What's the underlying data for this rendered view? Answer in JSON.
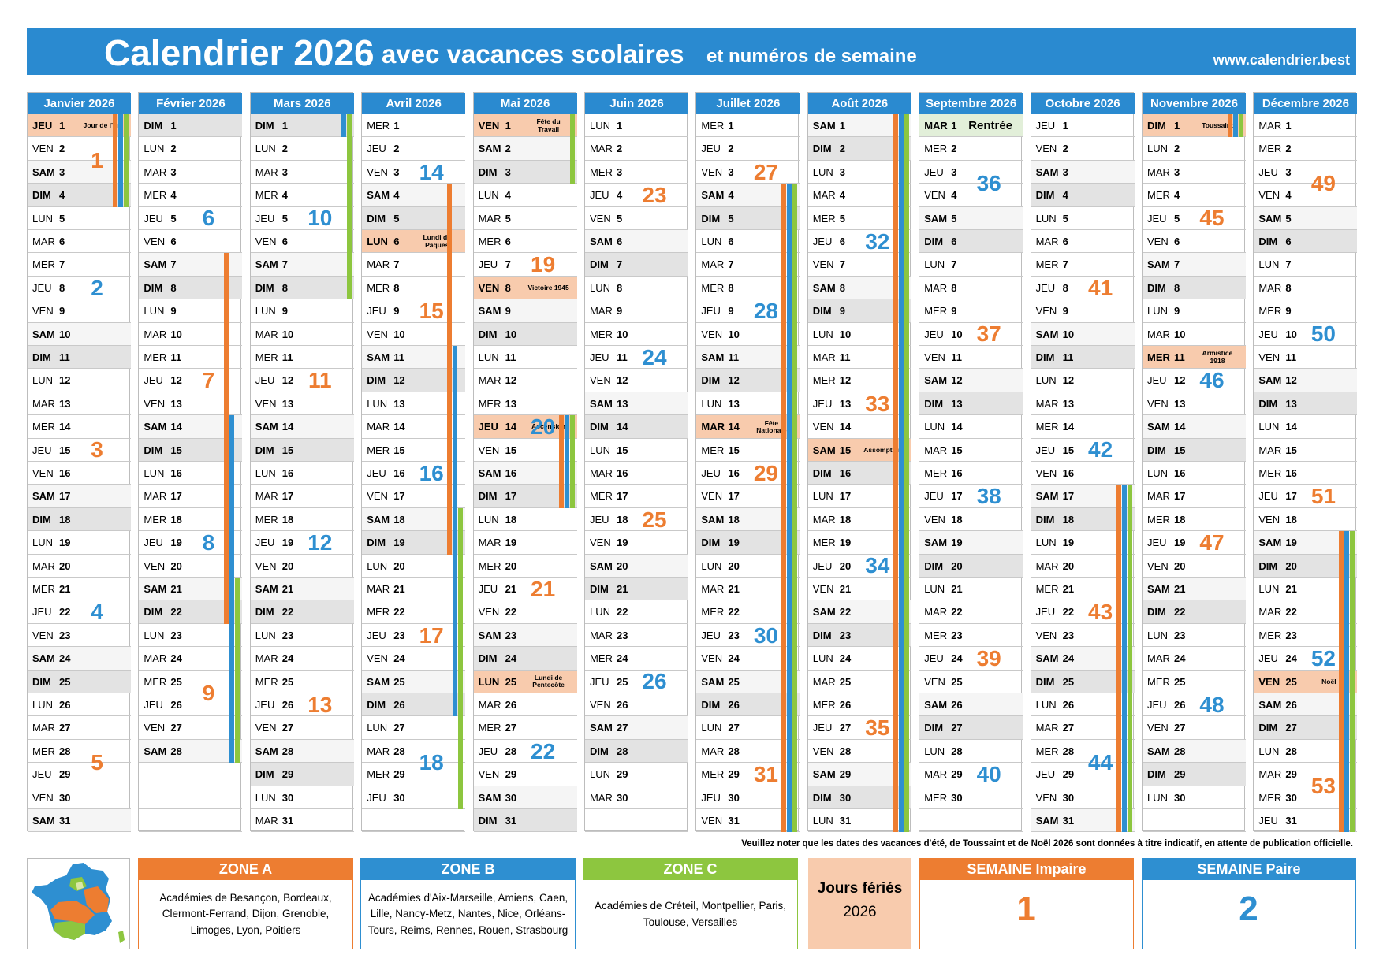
{
  "header": {
    "title": "Calendrier 2026",
    "subtitle": "avec vacances scolaires",
    "subtitle2": "et numéros de semaine",
    "url": "www.calendrier.best"
  },
  "header_color": "#2a8ad0",
  "holiday_color": "#f8cbad",
  "week_colors": {
    "odd": "#ed7d31",
    "even": "#2e8fd1"
  },
  "weekdays": [
    "LUN",
    "MAR",
    "MER",
    "JEU",
    "VEN",
    "SAM",
    "DIM"
  ],
  "months": [
    {
      "name": "Janvier 2026",
      "day_names": [
        "JEU",
        "VEN",
        "SAM",
        "DIM",
        "LUN",
        "MAR",
        "MER",
        "JEU",
        "VEN",
        "SAM",
        "DIM",
        "LUN",
        "MAR",
        "MER",
        "JEU",
        "VEN",
        "SAM",
        "DIM",
        "LUN",
        "MAR",
        "MER",
        "JEU",
        "VEN",
        "SAM",
        "DIM",
        "LUN",
        "MAR",
        "MER",
        "JEU",
        "VEN",
        "SAM"
      ],
      "days": [
        1,
        2,
        3,
        4,
        5,
        6,
        7,
        8,
        9,
        10,
        11,
        12,
        13,
        14,
        15,
        16,
        17,
        18,
        19,
        20,
        21,
        22,
        23,
        24,
        25,
        26,
        27,
        28,
        29,
        30,
        31
      ],
      "weeks": [
        1,
        2,
        3,
        4,
        5
      ],
      "holidays": [
        {
          "day": 1,
          "label": "Jour de l'An"
        }
      ],
      "vacations": [
        {
          "zone": "ZONE A",
          "days": [
            1,
            4
          ]
        },
        {
          "zone": "ZONE B",
          "days": [
            1,
            4
          ]
        },
        {
          "zone": "ZONE C",
          "days": [
            1,
            4
          ]
        }
      ]
    },
    {
      "name": "Février 2026",
      "day_names": [
        "DIM",
        "LUN",
        "MAR",
        "MER",
        "JEU",
        "VEN",
        "SAM",
        "DIM",
        "LUN",
        "MAR",
        "MER",
        "JEU",
        "VEN",
        "SAM",
        "DIM",
        "LUN",
        "MAR",
        "MER",
        "JEU",
        "VEN",
        "SAM",
        "DIM",
        "LUN",
        "MAR",
        "MER",
        "JEU",
        "VEN",
        "SAM"
      ],
      "days": [
        1,
        2,
        3,
        4,
        5,
        6,
        7,
        8,
        9,
        10,
        11,
        12,
        13,
        14,
        15,
        16,
        17,
        18,
        19,
        20,
        21,
        22,
        23,
        24,
        25,
        26,
        27,
        28
      ],
      "weeks": [
        null,
        6,
        7,
        8,
        9
      ],
      "vacations": [
        {
          "zone": "ZONE A",
          "days": [
            7,
            22
          ]
        },
        {
          "zone": "ZONE B",
          "days": [
            14,
            28
          ]
        },
        {
          "zone": "ZONE C",
          "days": [
            21,
            28
          ]
        }
      ]
    },
    {
      "name": "Mars 2026",
      "day_names": [
        "DIM",
        "LUN",
        "MAR",
        "MER",
        "JEU",
        "VEN",
        "SAM",
        "DIM",
        "LUN",
        "MAR",
        "MER",
        "JEU",
        "VEN",
        "SAM",
        "DIM",
        "LUN",
        "MAR",
        "MER",
        "JEU",
        "VEN",
        "SAM",
        "DIM",
        "LUN",
        "MAR",
        "MER",
        "JEU",
        "VEN",
        "SAM",
        "DIM",
        "LUN",
        "MAR"
      ],
      "days": [
        1,
        2,
        3,
        4,
        5,
        6,
        7,
        8,
        9,
        10,
        11,
        12,
        13,
        14,
        15,
        16,
        17,
        18,
        19,
        20,
        21,
        22,
        23,
        24,
        25,
        26,
        27,
        28,
        29,
        30,
        31
      ],
      "weeks": [
        null,
        10,
        11,
        12,
        13,
        null
      ],
      "vacations": [
        {
          "zone": "ZONE B",
          "days": [
            1,
            1
          ]
        },
        {
          "zone": "ZONE C",
          "days": [
            1,
            8
          ]
        }
      ]
    },
    {
      "name": "Avril 2026",
      "day_names": [
        "MER",
        "JEU",
        "VEN",
        "SAM",
        "DIM",
        "LUN",
        "MAR",
        "MER",
        "JEU",
        "VEN",
        "SAM",
        "DIM",
        "LUN",
        "MAR",
        "MER",
        "JEU",
        "VEN",
        "SAM",
        "DIM",
        "LUN",
        "MAR",
        "MER",
        "JEU",
        "VEN",
        "SAM",
        "DIM",
        "LUN",
        "MAR",
        "MER",
        "JEU"
      ],
      "days": [
        1,
        2,
        3,
        4,
        5,
        6,
        7,
        8,
        9,
        10,
        11,
        12,
        13,
        14,
        15,
        16,
        17,
        18,
        19,
        20,
        21,
        22,
        23,
        24,
        25,
        26,
        27,
        28,
        29,
        30
      ],
      "weeks": [
        14,
        15,
        16,
        17,
        18
      ],
      "holidays": [
        {
          "day": 6,
          "label": "Lundi de Pâques"
        }
      ],
      "vacations": [
        {
          "zone": "ZONE A",
          "days": [
            4,
            19
          ]
        },
        {
          "zone": "ZONE B",
          "days": [
            11,
            26
          ]
        },
        {
          "zone": "ZONE C",
          "days": [
            18,
            30
          ]
        }
      ]
    },
    {
      "name": "Mai 2026",
      "day_names": [
        "VEN",
        "SAM",
        "DIM",
        "LUN",
        "MAR",
        "MER",
        "JEU",
        "VEN",
        "SAM",
        "DIM",
        "LUN",
        "MAR",
        "MER",
        "JEU",
        "VEN",
        "SAM",
        "DIM",
        "LUN",
        "MAR",
        "MER",
        "JEU",
        "VEN",
        "SAM",
        "DIM",
        "LUN",
        "MAR",
        "MER",
        "JEU",
        "VEN",
        "SAM",
        "DIM"
      ],
      "days": [
        1,
        2,
        3,
        4,
        5,
        6,
        7,
        8,
        9,
        10,
        11,
        12,
        13,
        14,
        15,
        16,
        17,
        18,
        19,
        20,
        21,
        22,
        23,
        24,
        25,
        26,
        27,
        28,
        29,
        30,
        31
      ],
      "weeks": [
        null,
        19,
        20,
        21,
        22
      ],
      "holidays": [
        {
          "day": 1,
          "label": "Fête du Travail"
        },
        {
          "day": 8,
          "label": "Victoire 1945"
        },
        {
          "day": 14,
          "label": "Ascension"
        },
        {
          "day": 25,
          "label": "Lundi de Pentecôte"
        }
      ],
      "vacations": [
        {
          "zone": "ZONE C",
          "days": [
            1,
            3
          ]
        },
        {
          "zone": "ZONE A",
          "days": [
            14,
            17
          ]
        },
        {
          "zone": "ZONE B",
          "days": [
            14,
            17
          ]
        },
        {
          "zone": "ZONE C",
          "days": [
            14,
            17
          ]
        }
      ]
    },
    {
      "name": "Juin 2026",
      "day_names": [
        "LUN",
        "MAR",
        "MER",
        "JEU",
        "VEN",
        "SAM",
        "DIM",
        "LUN",
        "MAR",
        "MER",
        "JEU",
        "VEN",
        "SAM",
        "DIM",
        "LUN",
        "MAR",
        "MER",
        "JEU",
        "VEN",
        "SAM",
        "DIM",
        "LUN",
        "MAR",
        "MER",
        "JEU",
        "VEN",
        "SAM",
        "DIM",
        "LUN",
        "MAR"
      ],
      "days": [
        1,
        2,
        3,
        4,
        5,
        6,
        7,
        8,
        9,
        10,
        11,
        12,
        13,
        14,
        15,
        16,
        17,
        18,
        19,
        20,
        21,
        22,
        23,
        24,
        25,
        26,
        27,
        28,
        29,
        30
      ],
      "weeks": [
        23,
        24,
        25,
        26,
        null
      ]
    },
    {
      "name": "Juillet 2026",
      "day_names": [
        "MER",
        "JEU",
        "VEN",
        "SAM",
        "DIM",
        "LUN",
        "MAR",
        "MER",
        "JEU",
        "VEN",
        "SAM",
        "DIM",
        "LUN",
        "MAR",
        "MER",
        "JEU",
        "VEN",
        "SAM",
        "DIM",
        "LUN",
        "MAR",
        "MER",
        "JEU",
        "VEN",
        "SAM",
        "DIM",
        "LUN",
        "MAR",
        "MER",
        "JEU",
        "VEN"
      ],
      "days": [
        1,
        2,
        3,
        4,
        5,
        6,
        7,
        8,
        9,
        10,
        11,
        12,
        13,
        14,
        15,
        16,
        17,
        18,
        19,
        20,
        21,
        22,
        23,
        24,
        25,
        26,
        27,
        28,
        29,
        30,
        31
      ],
      "weeks": [
        27,
        28,
        29,
        30,
        31
      ],
      "holidays": [
        {
          "day": 14,
          "label": "Fête Nationale"
        }
      ],
      "vacations": [
        {
          "zone": "ZONE A",
          "days": [
            4,
            31
          ]
        },
        {
          "zone": "ZONE B",
          "days": [
            4,
            31
          ]
        },
        {
          "zone": "ZONE C",
          "days": [
            4,
            31
          ]
        }
      ]
    },
    {
      "name": "Août 2026",
      "day_names": [
        "SAM",
        "DIM",
        "LUN",
        "MAR",
        "MER",
        "JEU",
        "VEN",
        "SAM",
        "DIM",
        "LUN",
        "MAR",
        "MER",
        "JEU",
        "VEN",
        "SAM",
        "DIM",
        "LUN",
        "MAR",
        "MER",
        "JEU",
        "VEN",
        "SAM",
        "DIM",
        "LUN",
        "MAR",
        "MER",
        "JEU",
        "VEN",
        "SAM",
        "DIM",
        "LUN"
      ],
      "days": [
        1,
        2,
        3,
        4,
        5,
        6,
        7,
        8,
        9,
        10,
        11,
        12,
        13,
        14,
        15,
        16,
        17,
        18,
        19,
        20,
        21,
        22,
        23,
        24,
        25,
        26,
        27,
        28,
        29,
        30,
        31
      ],
      "weeks": [
        null,
        32,
        33,
        34,
        35,
        null
      ],
      "holidays": [
        {
          "day": 15,
          "label": "Assomption"
        }
      ],
      "vacations": [
        {
          "zone": "ZONE A",
          "days": [
            1,
            31
          ]
        },
        {
          "zone": "ZONE B",
          "days": [
            1,
            31
          ]
        },
        {
          "zone": "ZONE C",
          "days": [
            1,
            31
          ]
        }
      ]
    },
    {
      "name": "Septembre 2026",
      "day_names": [
        "MAR",
        "MER",
        "JEU",
        "VEN",
        "SAM",
        "DIM",
        "LUN",
        "MAR",
        "MER",
        "JEU",
        "VEN",
        "SAM",
        "DIM",
        "LUN",
        "MAR",
        "MER",
        "JEU",
        "VEN",
        "SAM",
        "DIM",
        "LUN",
        "MAR",
        "MER",
        "JEU",
        "VEN",
        "SAM",
        "DIM",
        "LUN",
        "MAR",
        "MER"
      ],
      "days": [
        1,
        2,
        3,
        4,
        5,
        6,
        7,
        8,
        9,
        10,
        11,
        12,
        13,
        14,
        15,
        16,
        17,
        18,
        19,
        20,
        21,
        22,
        23,
        24,
        25,
        26,
        27,
        28,
        29,
        30
      ],
      "weeks": [
        36,
        37,
        38,
        39,
        40
      ],
      "events": [
        {
          "day": 1,
          "label": "Rentrée",
          "color": "#e2efd9"
        }
      ]
    },
    {
      "name": "Octobre 2026",
      "day_names": [
        "JEU",
        "VEN",
        "SAM",
        "DIM",
        "LUN",
        "MAR",
        "MER",
        "JEU",
        "VEN",
        "SAM",
        "DIM",
        "LUN",
        "MAR",
        "MER",
        "JEU",
        "VEN",
        "SAM",
        "DIM",
        "LUN",
        "MAR",
        "MER",
        "JEU",
        "VEN",
        "SAM",
        "DIM",
        "LUN",
        "MAR",
        "MER",
        "JEU",
        "VEN",
        "SAM"
      ],
      "days": [
        1,
        2,
        3,
        4,
        5,
        6,
        7,
        8,
        9,
        10,
        11,
        12,
        13,
        14,
        15,
        16,
        17,
        18,
        19,
        20,
        21,
        22,
        23,
        24,
        25,
        26,
        27,
        28,
        29,
        30,
        31
      ],
      "weeks": [
        null,
        41,
        42,
        43,
        44
      ],
      "vacations": [
        {
          "zone": "ZONE A",
          "days": [
            17,
            31
          ]
        },
        {
          "zone": "ZONE B",
          "days": [
            17,
            31
          ]
        },
        {
          "zone": "ZONE C",
          "days": [
            17,
            31
          ]
        }
      ]
    },
    {
      "name": "Novembre 2026",
      "day_names": [
        "DIM",
        "LUN",
        "MAR",
        "MER",
        "JEU",
        "VEN",
        "SAM",
        "DIM",
        "LUN",
        "MAR",
        "MER",
        "JEU",
        "VEN",
        "SAM",
        "DIM",
        "LUN",
        "MAR",
        "MER",
        "JEU",
        "VEN",
        "SAM",
        "DIM",
        "LUN",
        "MAR",
        "MER",
        "JEU",
        "VEN",
        "SAM",
        "DIM",
        "LUN"
      ],
      "days": [
        1,
        2,
        3,
        4,
        5,
        6,
        7,
        8,
        9,
        10,
        11,
        12,
        13,
        14,
        15,
        16,
        17,
        18,
        19,
        20,
        21,
        22,
        23,
        24,
        25,
        26,
        27,
        28,
        29,
        30
      ],
      "weeks": [
        null,
        45,
        46,
        47,
        48,
        null
      ],
      "holidays": [
        {
          "day": 1,
          "label": "Toussaint"
        },
        {
          "day": 11,
          "label": "Armistice 1918"
        }
      ],
      "vacations": [
        {
          "zone": "ZONE A",
          "days": [
            1,
            1
          ]
        },
        {
          "zone": "ZONE B",
          "days": [
            1,
            1
          ]
        },
        {
          "zone": "ZONE C",
          "days": [
            1,
            1
          ]
        }
      ]
    },
    {
      "name": "Décembre 2026",
      "day_names": [
        "MAR",
        "MER",
        "JEU",
        "VEN",
        "SAM",
        "DIM",
        "LUN",
        "MAR",
        "MER",
        "JEU",
        "VEN",
        "SAM",
        "DIM",
        "LUN",
        "MAR",
        "MER",
        "JEU",
        "VEN",
        "SAM",
        "DIM",
        "LUN",
        "MAR",
        "MER",
        "JEU",
        "VEN",
        "SAM",
        "DIM",
        "LUN",
        "MAR",
        "MER",
        "JEU"
      ],
      "days": [
        1,
        2,
        3,
        4,
        5,
        6,
        7,
        8,
        9,
        10,
        11,
        12,
        13,
        14,
        15,
        16,
        17,
        18,
        19,
        20,
        21,
        22,
        23,
        24,
        25,
        26,
        27,
        28,
        29,
        30,
        31
      ],
      "weeks": [
        49,
        50,
        51,
        52,
        53
      ],
      "holidays": [
        {
          "day": 25,
          "label": "Noël"
        }
      ],
      "vacations": [
        {
          "zone": "ZONE A",
          "days": [
            19,
            31
          ]
        },
        {
          "zone": "ZONE B",
          "days": [
            19,
            31
          ]
        },
        {
          "zone": "ZONE C",
          "days": [
            19,
            31
          ]
        }
      ]
    }
  ],
  "note": "Veuillez noter que les dates des vacances d'été, de Toussaint et de Noël 2026 sont données à titre indicatif, en attente de publication officielle.",
  "zones": [
    {
      "name": "ZONE A",
      "color": "#ed7d31",
      "text": "Académies de Besançon, Bordeaux, Clermont-Ferrand, Dijon, Grenoble, Limoges, Lyon, Poitiers"
    },
    {
      "name": "ZONE B",
      "color": "#2e8fd1",
      "text": "Académies d'Aix-Marseille, Amiens, Caen, Lille, Nancy-Metz, Nantes, Nice, Orléans-Tours, Reims, Rennes, Rouen, Strasbourg"
    },
    {
      "name": "ZONE C",
      "color": "#8dc63f",
      "text": "Académies de Créteil, Montpellier, Paris, Toulouse, Versailles"
    }
  ],
  "holidays_legend": {
    "title": "Jours fériés",
    "year": "2026"
  },
  "week_legend": [
    {
      "title": "SEMAINE Impaire",
      "number": 1
    },
    {
      "title": "SEMAINE Paire",
      "number": 2
    }
  ]
}
